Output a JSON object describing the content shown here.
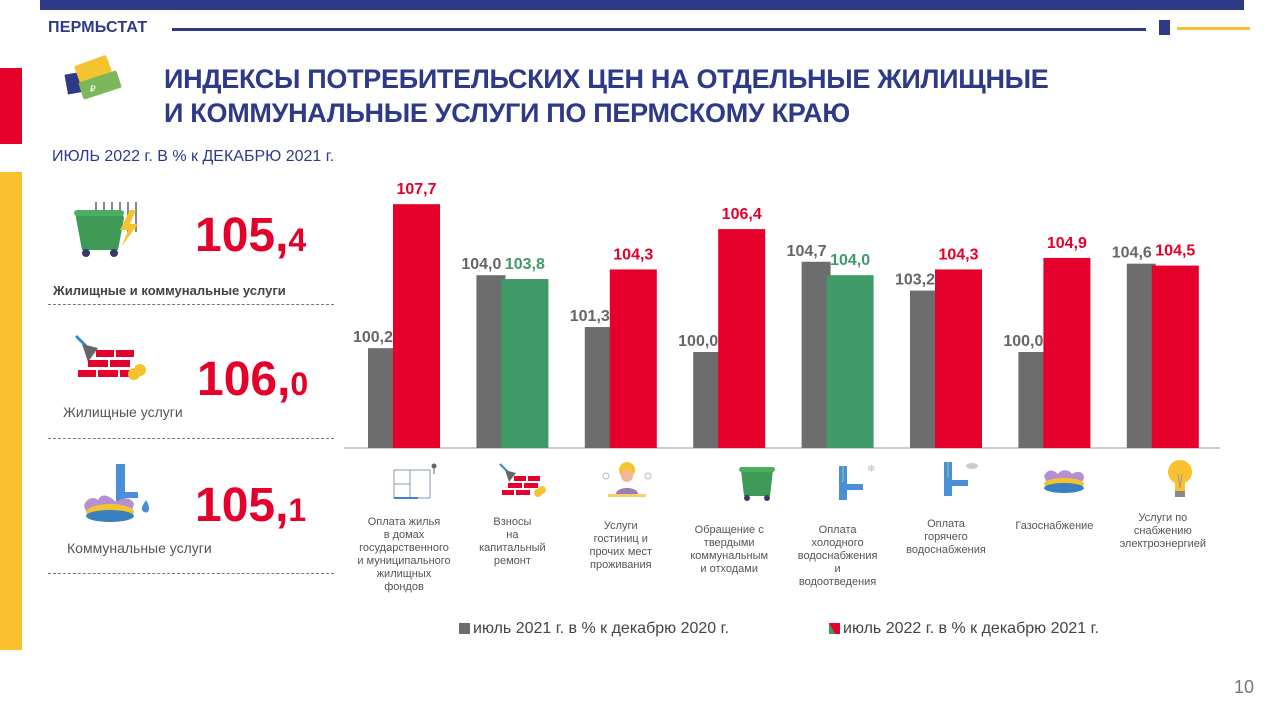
{
  "header": {
    "brand": "ПЕРМЬСТАТ",
    "title_line1": "ИНДЕКСЫ ПОТРЕБИТЕЛЬСКИХ ЦЕН НА ОТДЕЛЬНЫЕ ЖИЛИЩНЫЕ",
    "title_line2": "И КОММУНАЛЬНЫЕ УСЛУГИ ПО ПЕРМСКОМУ КРАЮ",
    "subtitle": "ИЮЛЬ 2022 г. В % к ДЕКАБРЮ 2021 г."
  },
  "colors": {
    "brand_blue": "#2e3a87",
    "red": "#e4002b",
    "green": "#3f9a68",
    "gray": "#6d6d6d",
    "yellow": "#fbc02d"
  },
  "kpis": [
    {
      "int": "105,",
      "dec": "4",
      "label": "Жилищные и коммунальные услуги",
      "icon": "trash-container-radiator-icon"
    },
    {
      "int": "106,",
      "dec": "0",
      "label": "Жилищные услуги",
      "icon": "bricks-trowel-icon"
    },
    {
      "int": "105,",
      "dec": "1",
      "label": "Коммунальные услуги",
      "icon": "gas-water-icon"
    }
  ],
  "chart_data": {
    "type": "bar",
    "title": "",
    "xlabel": "",
    "ylabel": "",
    "ylim": [
      95,
      110
    ],
    "grid": false,
    "legend_position": "bottom",
    "categories": [
      "Оплата жилья в домах государственного и муниципального жилищных фондов",
      "Взносы на капитальный ремонт",
      "Услуги гостиниц и прочих мест проживания",
      "Обращение с твердыми коммунальным и отходами",
      "Оплата холодного водоснабжения и водоотведения",
      "Оплата горячего водоснабжения",
      "Газоснабжение",
      "Услуги по снабжению электроэнергией"
    ],
    "category_lines": [
      [
        "Оплата жилья",
        "в домах",
        "государственного",
        "и муниципального",
        "жилищных",
        "фондов"
      ],
      [
        "Взносы",
        "на",
        "капитальный",
        "ремонт"
      ],
      [
        "Услуги",
        "гостиниц и",
        "прочих мест",
        "проживания"
      ],
      [
        "Обращение с",
        "твердыми",
        "коммунальным",
        "и отходами"
      ],
      [
        "Оплата",
        "холодного",
        "водоснабжения",
        "и",
        "водоотведения"
      ],
      [
        "Оплата",
        "горячего",
        "водоснабжения"
      ],
      [
        "Газоснабжение"
      ],
      [
        "Услуги по",
        "снабжению",
        "электроэнергией"
      ]
    ],
    "category_icons": [
      "floor-plan-icon",
      "bricks-trowel-icon",
      "hotel-receptionist-icon",
      "trash-container-icon",
      "cold-water-pipe-icon",
      "hot-water-pipe-icon",
      "gas-burner-icon",
      "light-bulb-icon"
    ],
    "series": [
      {
        "name": "июль 2021 г. в  % к декабрю 2020 г.",
        "values": [
          100.2,
          104.0,
          101.3,
          100.0,
          104.7,
          103.2,
          100.0,
          104.6
        ],
        "labels": [
          "100,2",
          "104,0",
          "101,3",
          "100,0",
          "104,7",
          "103,2",
          "100,0",
          "104,6"
        ]
      },
      {
        "name": "июль 2022 г. в % к декабрю 2021 г.",
        "values": [
          107.7,
          103.8,
          104.3,
          106.4,
          104.0,
          104.3,
          104.9,
          104.5
        ],
        "labels": [
          "107,7",
          "103,8",
          "104,3",
          "106,4",
          "104,0",
          "104,3",
          "104,9",
          "104,5"
        ],
        "bar_colors": [
          "red",
          "green",
          "red",
          "red",
          "green",
          "red",
          "red",
          "red"
        ]
      }
    ]
  },
  "page_number": "10"
}
